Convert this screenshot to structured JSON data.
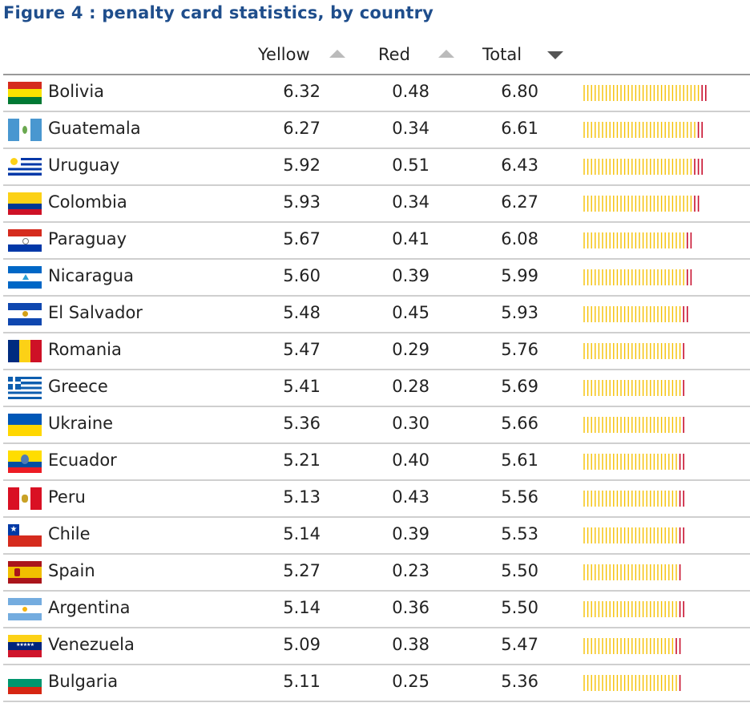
{
  "title": "Figure 4 : penalty card statistics, by country",
  "columns": {
    "yellow": "Yellow",
    "red": "Red",
    "total": "Total"
  },
  "sort": {
    "yellow": "ascending-inactive",
    "red": "ascending-inactive",
    "total": "descending-active"
  },
  "colors": {
    "yellow_mark": "#f5c000",
    "red_mark": "#c8102e",
    "title": "#1f4e8c"
  },
  "chart_data": {
    "type": "table",
    "columns": [
      "Yellow",
      "Red",
      "Total"
    ],
    "rows": [
      {
        "country": "Bolivia",
        "flag": "bolivia-flag",
        "yellow": "6.32",
        "red": "0.48",
        "total": "6.80"
      },
      {
        "country": "Guatemala",
        "flag": "guatemala-flag",
        "yellow": "6.27",
        "red": "0.34",
        "total": "6.61"
      },
      {
        "country": "Uruguay",
        "flag": "uruguay-flag",
        "yellow": "5.92",
        "red": "0.51",
        "total": "6.43"
      },
      {
        "country": "Colombia",
        "flag": "colombia-flag",
        "yellow": "5.93",
        "red": "0.34",
        "total": "6.27"
      },
      {
        "country": "Paraguay",
        "flag": "paraguay-flag",
        "yellow": "5.67",
        "red": "0.41",
        "total": "6.08"
      },
      {
        "country": "Nicaragua",
        "flag": "nicaragua-flag",
        "yellow": "5.60",
        "red": "0.39",
        "total": "5.99"
      },
      {
        "country": "El Salvador",
        "flag": "el-salvador-flag",
        "yellow": "5.48",
        "red": "0.45",
        "total": "5.93"
      },
      {
        "country": "Romania",
        "flag": "romania-flag",
        "yellow": "5.47",
        "red": "0.29",
        "total": "5.76"
      },
      {
        "country": "Greece",
        "flag": "greece-flag",
        "yellow": "5.41",
        "red": "0.28",
        "total": "5.69"
      },
      {
        "country": "Ukraine",
        "flag": "ukraine-flag",
        "yellow": "5.36",
        "red": "0.30",
        "total": "5.66"
      },
      {
        "country": "Ecuador",
        "flag": "ecuador-flag",
        "yellow": "5.21",
        "red": "0.40",
        "total": "5.61"
      },
      {
        "country": "Peru",
        "flag": "peru-flag",
        "yellow": "5.13",
        "red": "0.43",
        "total": "5.56"
      },
      {
        "country": "Chile",
        "flag": "chile-flag",
        "yellow": "5.14",
        "red": "0.39",
        "total": "5.53"
      },
      {
        "country": "Spain",
        "flag": "spain-flag",
        "yellow": "5.27",
        "red": "0.23",
        "total": "5.50"
      },
      {
        "country": "Argentina",
        "flag": "argentina-flag",
        "yellow": "5.14",
        "red": "0.36",
        "total": "5.50"
      },
      {
        "country": "Venezuela",
        "flag": "venezuela-flag",
        "yellow": "5.09",
        "red": "0.38",
        "total": "5.47"
      },
      {
        "country": "Bulgaria",
        "flag": "bulgaria-flag",
        "yellow": "5.11",
        "red": "0.25",
        "total": "5.36"
      }
    ]
  }
}
